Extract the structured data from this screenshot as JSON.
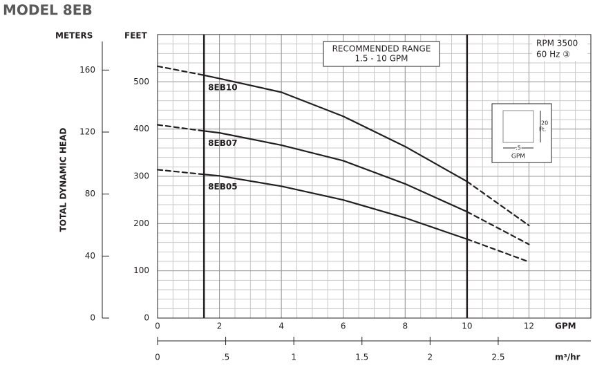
{
  "chart_data": {
    "type": "line",
    "title": "MODEL 8EB",
    "y_label": "TOTAL DYNAMIC HEAD",
    "y_unit_label": "FEET",
    "y2_unit_label": "METERS",
    "x_label": "GPM",
    "x2_label": "m³/hr",
    "xlim": [
      0,
      14
    ],
    "xticks": [
      0,
      2,
      4,
      6,
      8,
      10,
      12
    ],
    "ylim": [
      0,
      600
    ],
    "yticks": [
      0,
      100,
      200,
      300,
      400,
      500
    ],
    "y2lim": [
      0,
      182.9
    ],
    "y2ticks": [
      0,
      40,
      80,
      120,
      160
    ],
    "x2lim": [
      0,
      3.18
    ],
    "x2ticks": [
      0,
      {
        "value": 0.5,
        "label": ".5"
      },
      1,
      1.5,
      2,
      2.5
    ],
    "grid": true,
    "minor_grid": {
      "x": 0.5,
      "y": 20
    },
    "recommended_range": {
      "title": "RECOMMENDED RANGE",
      "label": "1.5 - 10 GPM",
      "x": [
        1.5,
        10
      ]
    },
    "conditions": [
      "RPM 3500",
      "60 Hz ③"
    ],
    "scale_box": {
      "height": "20",
      "height_unit": "Ft.",
      "width": ".5",
      "width_unit": "GPM"
    },
    "x": [
      0,
      1.5,
      2,
      4,
      6,
      8,
      10,
      12
    ],
    "series": [
      {
        "name": "8EB10",
        "color": "#231f20",
        "values": [
          533,
          514,
          507,
          478,
          427,
          363,
          289,
          196
        ]
      },
      {
        "name": "8EB07",
        "color": "#231f20",
        "values": [
          409,
          396,
          392,
          366,
          333,
          284,
          225,
          156
        ]
      },
      {
        "name": "8EB05",
        "color": "#231f20",
        "values": [
          314,
          304,
          301,
          279,
          250,
          212,
          167,
          119
        ]
      }
    ]
  }
}
